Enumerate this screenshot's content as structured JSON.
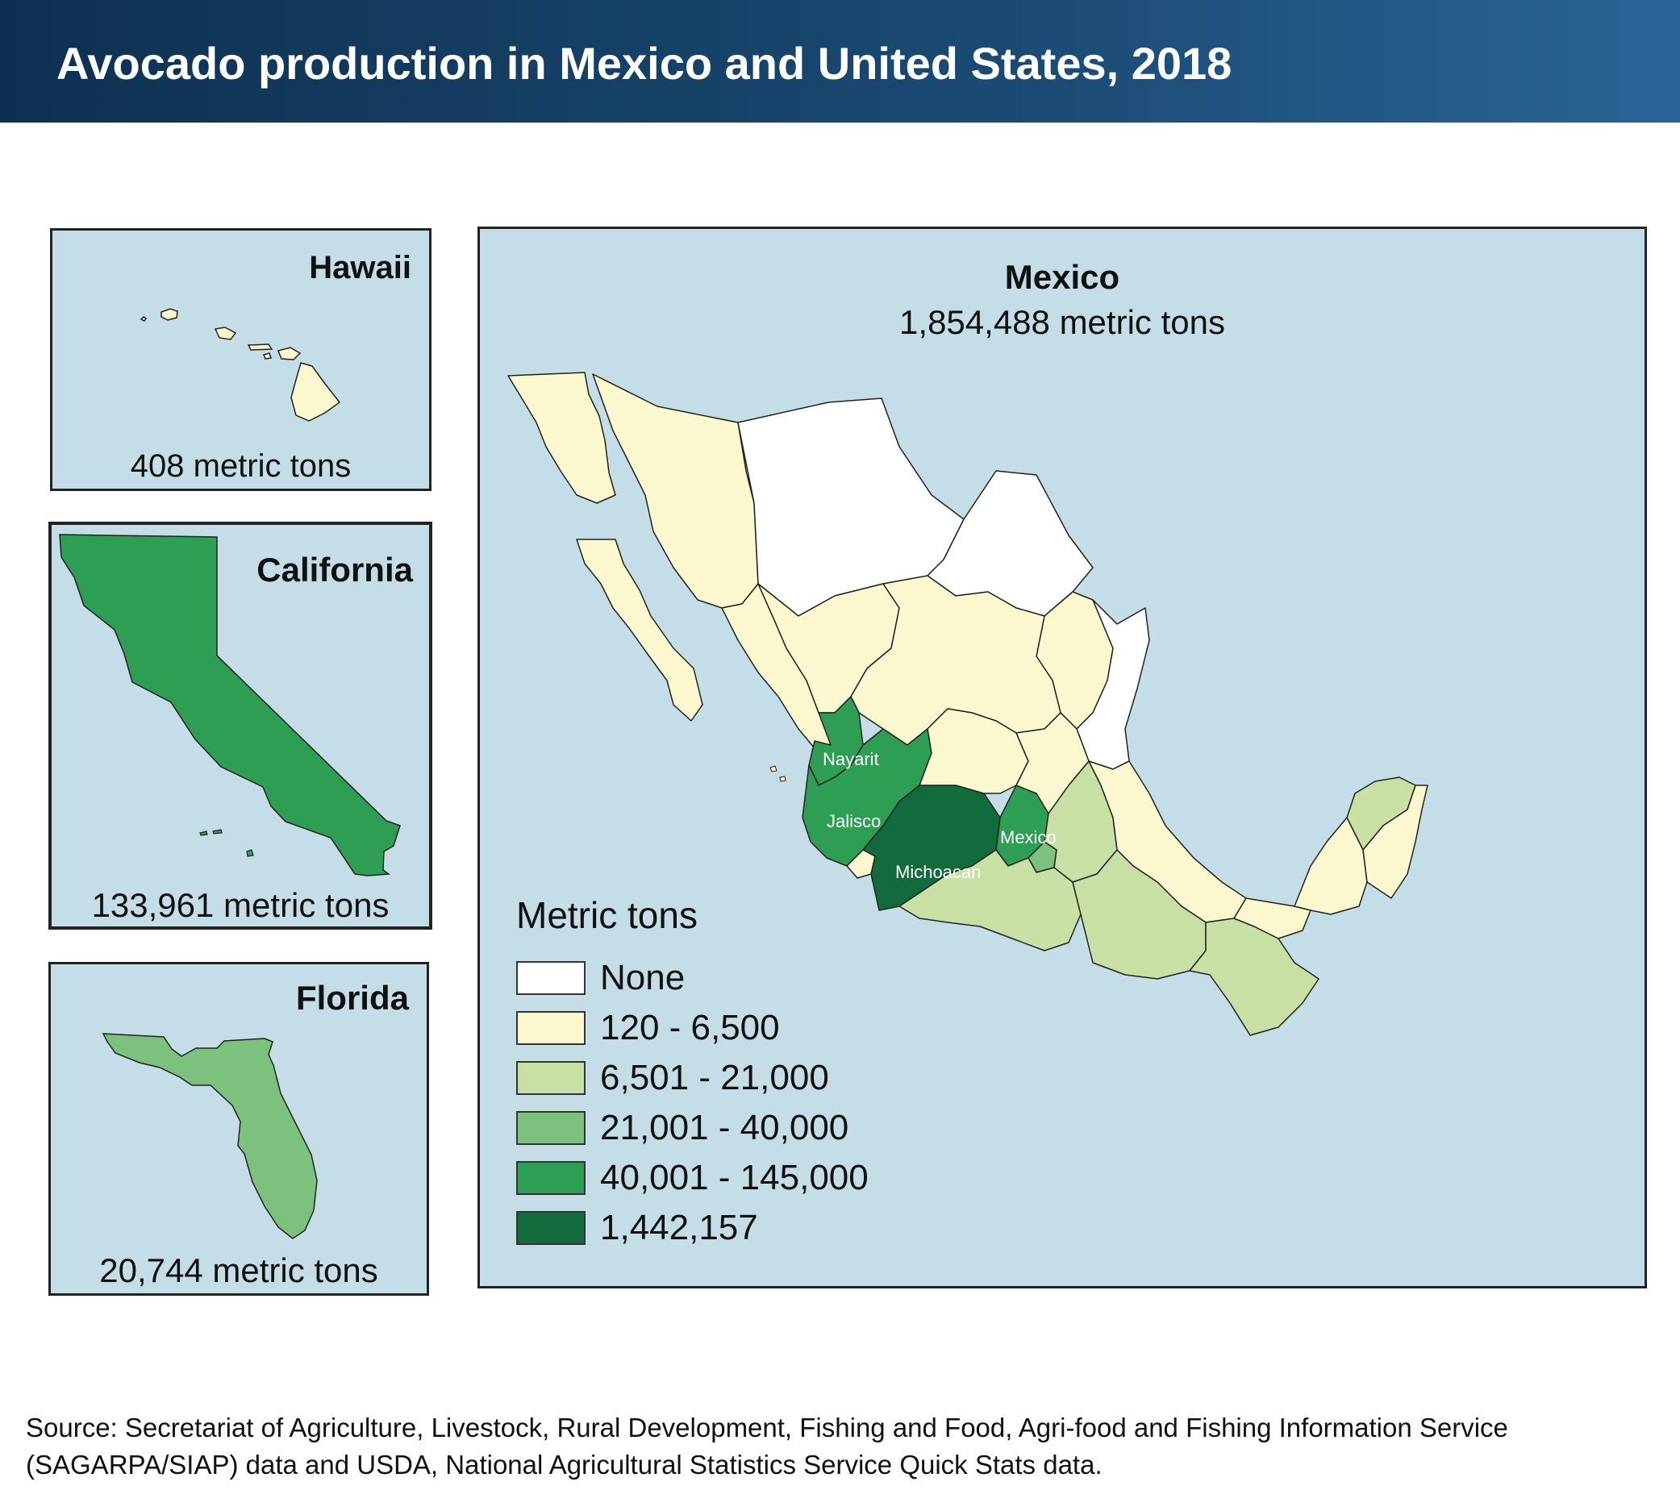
{
  "title": "Avocado production in Mexico and United States, 2018",
  "colors": {
    "header": "#123a5f",
    "water": "#c5dde7",
    "none": "#ffffff",
    "class1": "#fbf8cf",
    "class2": "#c8e0a4",
    "class3": "#7cc27e",
    "class4": "#2f9e55",
    "class5": "#116b3d"
  },
  "panels": {
    "hawaii": {
      "title": "Hawaii",
      "value": "408 metric tons"
    },
    "california": {
      "title": "California",
      "value": "133,961 metric tons"
    },
    "florida": {
      "title": "Florida",
      "value": "20,744 metric tons"
    },
    "mexico": {
      "title": "Mexico",
      "value": "1,854,488 metric tons"
    }
  },
  "state_labels": {
    "nayarit": "Nayarit",
    "jalisco": "Jalisco",
    "michoacan": "Michoacan",
    "mexico_state": "Mexico"
  },
  "legend": {
    "title": "Metric tons",
    "items": [
      {
        "label": "None",
        "color": "#ffffff"
      },
      {
        "label": "120 - 6,500",
        "color": "#fbf8cf"
      },
      {
        "label": "6,501 - 21,000",
        "color": "#c8e0a4"
      },
      {
        "label": "21,001 - 40,000",
        "color": "#7cc27e"
      },
      {
        "label": "40,001 - 145,000",
        "color": "#2f9e55"
      },
      {
        "label": "1,442,157",
        "color": "#116b3d"
      }
    ]
  },
  "source": "Source: Secretariat of Agriculture, Livestock, Rural Development, Fishing and Food, Agri-food and Fishing Information Service (SAGARPA/SIAP) data and USDA, National Agricultural Statistics Service Quick Stats data."
}
